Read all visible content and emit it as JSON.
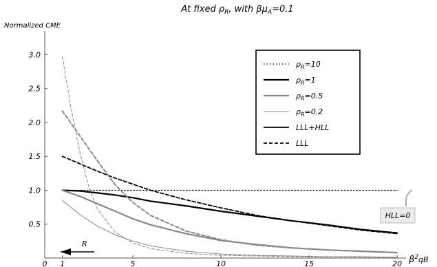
{
  "chart_data": {
    "type": "line",
    "title": "At fixed ρR, with βμA=0.1",
    "title_parts": {
      "prefix": "At fixed ",
      "rho": "ρ",
      "rho_sub": "R",
      "mid": ", with βμ",
      "mu_sub": "A",
      "suffix": "=0.1"
    },
    "ylabel": "Normalized CME",
    "xlabel_parts": {
      "beta": "β",
      "sup": "2",
      "rest": "qB"
    },
    "xlim": [
      0,
      20.5
    ],
    "ylim": [
      0,
      3.35
    ],
    "x_ticks": [
      "0",
      "1",
      "5",
      "10",
      "15",
      "20"
    ],
    "y_ticks": [
      "0.5",
      "1.0",
      "1.5",
      "2.0",
      "2.5",
      "3.0"
    ],
    "grid": false,
    "legend_position": "top-right",
    "annotations": {
      "hll_zero": "HLL=0",
      "arrow_label": "R"
    },
    "series": [
      {
        "name": "ρR=10",
        "name_base": "ρ",
        "name_sub": "R",
        "name_rest": "=10",
        "color": "#000000",
        "style": "dotted",
        "group": "rho10",
        "x": [
          1,
          5,
          10,
          15,
          19.5,
          20
        ],
        "y": [
          1.0,
          1.0,
          1.0,
          1.0,
          1.0,
          1.0
        ]
      },
      {
        "name": "ρR=1",
        "name_base": "ρ",
        "name_sub": "R",
        "name_rest": "=1",
        "color": "#000000",
        "style": "solid-thick",
        "group": "rho1",
        "x": [
          1,
          2,
          3,
          4,
          5,
          6,
          8,
          10,
          12,
          14,
          16,
          18,
          20
        ],
        "y": [
          1.0,
          0.99,
          0.96,
          0.93,
          0.89,
          0.84,
          0.77,
          0.69,
          0.62,
          0.55,
          0.49,
          0.42,
          0.37
        ]
      },
      {
        "name": "ρR=0.5",
        "name_base": "ρ",
        "name_sub": "R",
        "name_rest": "=0.5",
        "color": "#888888",
        "style": "solid-thick",
        "group": "rho05",
        "x": [
          1,
          2,
          3,
          4,
          5,
          6,
          8,
          10,
          12,
          14,
          16,
          18,
          20
        ],
        "y": [
          1.0,
          0.91,
          0.8,
          0.69,
          0.58,
          0.49,
          0.36,
          0.26,
          0.2,
          0.15,
          0.12,
          0.1,
          0.08
        ]
      },
      {
        "name": "ρR=0.2",
        "name_base": "ρ",
        "name_sub": "R",
        "name_rest": "=0.2",
        "color": "#888888",
        "style": "solid-thin",
        "group": "rho02",
        "x": [
          1,
          2,
          3,
          4,
          5,
          6,
          8,
          10,
          12,
          14,
          16,
          18,
          20
        ],
        "y": [
          0.85,
          0.64,
          0.47,
          0.34,
          0.25,
          0.18,
          0.1,
          0.06,
          0.04,
          0.03,
          0.02,
          0.02,
          0.01
        ]
      },
      {
        "name": "LLL+HLL",
        "color": "#000000",
        "style": "solid",
        "legend_only": true
      },
      {
        "name": "LLL",
        "color": "#000000",
        "style": "dashed",
        "legend_only": true
      },
      {
        "name": "LLL ρR=1",
        "color": "#000000",
        "style": "dashed",
        "group": "rho1",
        "x": [
          1,
          2,
          3,
          4,
          5,
          6,
          8,
          10,
          12,
          14,
          16,
          18,
          20
        ],
        "y": [
          1.5,
          1.39,
          1.28,
          1.18,
          1.09,
          1.0,
          0.86,
          0.74,
          0.63,
          0.55,
          0.48,
          0.41,
          0.36
        ]
      },
      {
        "name": "LLL ρR=0.5",
        "color": "#888888",
        "style": "dashed-thick",
        "group": "rho05",
        "x": [
          1,
          2,
          3,
          4,
          5,
          6,
          8,
          10,
          12,
          14,
          16,
          18,
          20
        ],
        "y": [
          2.17,
          1.8,
          1.43,
          1.08,
          0.82,
          0.63,
          0.4,
          0.27,
          0.19,
          0.15,
          0.12,
          0.1,
          0.08
        ]
      },
      {
        "name": "LLL ρR=0.2",
        "color": "#888888",
        "style": "dashed-thin",
        "group": "rho02",
        "x": [
          1,
          1.5,
          2,
          2.5,
          3,
          4,
          5,
          6,
          8,
          10,
          14,
          20
        ],
        "y": [
          2.97,
          2.2,
          1.55,
          1.05,
          0.72,
          0.38,
          0.22,
          0.14,
          0.07,
          0.04,
          0.02,
          0.01
        ]
      }
    ]
  }
}
